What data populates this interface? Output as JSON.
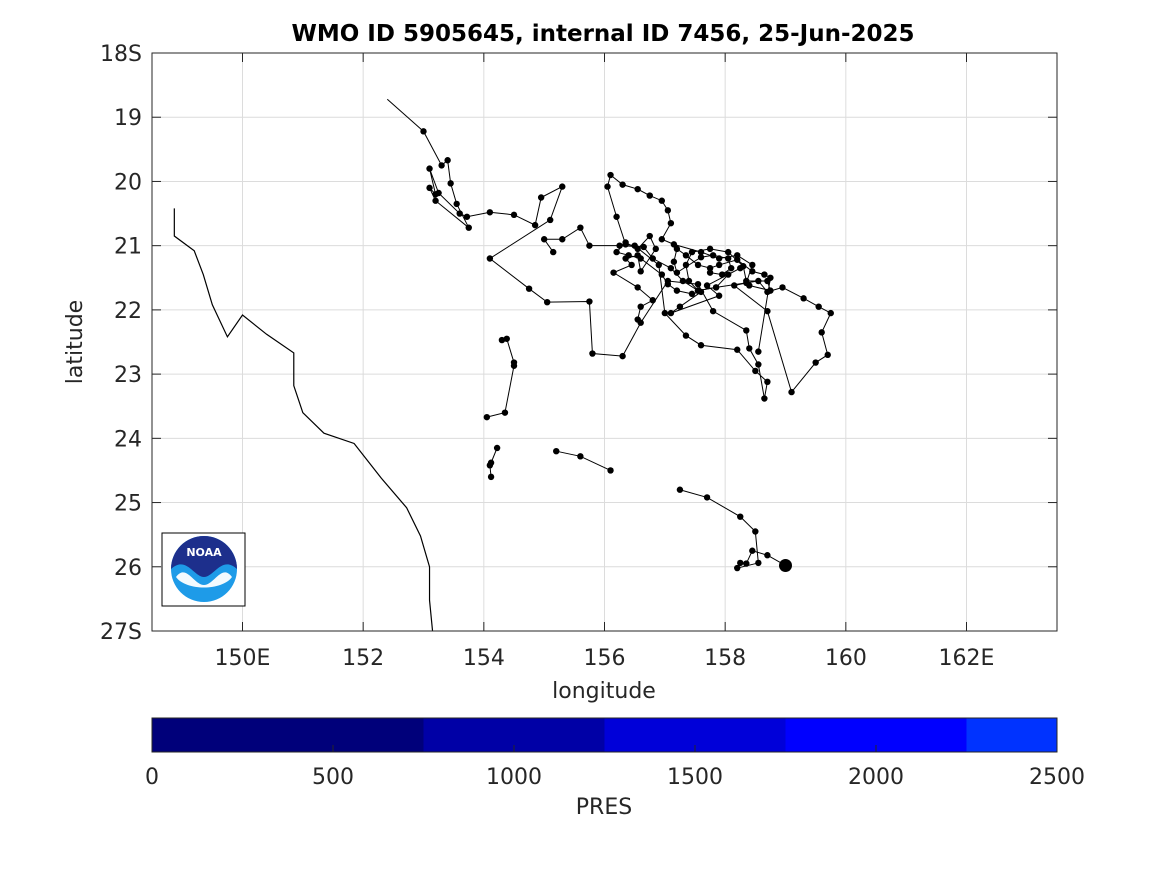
{
  "chart_data": [
    {
      "type": "scatter",
      "title": "WMO ID 5905645, internal ID 7456, 25-Jun-2025",
      "xlabel": "longitude",
      "ylabel": "latitude",
      "xlim": [
        148.5,
        163.5
      ],
      "ylim": [
        18,
        27
      ],
      "y_reversed": true,
      "grid": true,
      "x_ticks": [
        {
          "value": 150,
          "label": "150E"
        },
        {
          "value": 152,
          "label": "152"
        },
        {
          "value": 154,
          "label": "154"
        },
        {
          "value": 156,
          "label": "156"
        },
        {
          "value": 158,
          "label": "158"
        },
        {
          "value": 160,
          "label": "160"
        },
        {
          "value": 162,
          "label": "162E"
        }
      ],
      "y_ticks": [
        {
          "value": 18,
          "label": "18S"
        },
        {
          "value": 19,
          "label": "19"
        },
        {
          "value": 20,
          "label": "20"
        },
        {
          "value": 21,
          "label": "21"
        },
        {
          "value": 22,
          "label": "22"
        },
        {
          "value": 23,
          "label": "23"
        },
        {
          "value": 24,
          "label": "24"
        },
        {
          "value": 25,
          "label": "25"
        },
        {
          "value": 26,
          "label": "26"
        },
        {
          "value": 27,
          "label": "27S"
        }
      ],
      "coastline": [
        [
          148.87,
          20.42
        ],
        [
          148.87,
          20.85
        ],
        [
          149.2,
          21.08
        ],
        [
          149.35,
          21.45
        ],
        [
          149.5,
          21.92
        ],
        [
          149.75,
          22.42
        ],
        [
          150.0,
          22.08
        ],
        [
          150.4,
          22.38
        ],
        [
          150.85,
          22.67
        ],
        [
          150.85,
          23.18
        ],
        [
          151.0,
          23.6
        ],
        [
          151.35,
          23.92
        ],
        [
          151.85,
          24.08
        ],
        [
          152.3,
          24.62
        ],
        [
          152.72,
          25.08
        ],
        [
          152.95,
          25.52
        ],
        [
          153.1,
          26.0
        ],
        [
          153.1,
          26.52
        ],
        [
          153.15,
          27.0
        ]
      ],
      "track_segments": [
        [
          [
            152.4,
            18.72
          ],
          [
            153.0,
            19.22
          ],
          [
            153.3,
            19.75
          ],
          [
            153.4,
            19.67
          ],
          [
            153.45,
            20.03
          ],
          [
            153.55,
            20.35
          ],
          [
            153.75,
            20.72
          ],
          [
            153.2,
            20.3
          ],
          [
            153.1,
            20.1
          ],
          [
            153.2,
            20.2
          ],
          [
            153.1,
            19.8
          ],
          [
            153.25,
            20.18
          ],
          [
            153.6,
            20.5
          ],
          [
            153.72,
            20.55
          ],
          [
            154.1,
            20.48
          ],
          [
            154.5,
            20.52
          ],
          [
            154.85,
            20.68
          ],
          [
            154.95,
            20.25
          ],
          [
            155.3,
            20.08
          ],
          [
            155.1,
            20.6
          ],
          [
            154.1,
            21.2
          ],
          [
            154.75,
            21.67
          ],
          [
            155.05,
            21.88
          ],
          [
            155.75,
            21.87
          ],
          [
            155.8,
            22.68
          ],
          [
            156.3,
            22.72
          ],
          [
            156.6,
            22.2
          ],
          [
            157.05,
            21.55
          ],
          [
            157.55,
            21.6
          ],
          [
            157.8,
            22.02
          ],
          [
            158.35,
            22.32
          ],
          [
            158.4,
            22.6
          ],
          [
            158.55,
            22.85
          ],
          [
            158.65,
            23.38
          ],
          [
            158.7,
            23.12
          ],
          [
            158.5,
            22.95
          ],
          [
            158.2,
            22.62
          ],
          [
            157.6,
            22.55
          ],
          [
            157.35,
            22.4
          ],
          [
            157.0,
            22.05
          ],
          [
            156.9,
            21.3
          ],
          [
            156.5,
            21.0
          ],
          [
            156.35,
            20.98
          ],
          [
            156.2,
            20.55
          ],
          [
            156.05,
            20.08
          ],
          [
            156.1,
            19.9
          ],
          [
            156.3,
            20.05
          ],
          [
            156.55,
            20.12
          ],
          [
            156.75,
            20.22
          ],
          [
            156.95,
            20.3
          ],
          [
            157.05,
            20.45
          ],
          [
            157.1,
            20.65
          ],
          [
            156.95,
            20.9
          ],
          [
            157.15,
            20.98
          ],
          [
            157.6,
            21.1
          ],
          [
            157.9,
            21.2
          ],
          [
            158.2,
            21.15
          ],
          [
            158.45,
            21.3
          ],
          [
            158.35,
            21.58
          ],
          [
            158.15,
            21.62
          ],
          [
            158.7,
            22.02
          ],
          [
            159.1,
            23.28
          ],
          [
            159.5,
            22.82
          ],
          [
            159.7,
            22.7
          ],
          [
            159.6,
            22.35
          ],
          [
            159.75,
            22.05
          ],
          [
            159.55,
            21.95
          ],
          [
            159.3,
            21.82
          ],
          [
            158.95,
            21.65
          ],
          [
            158.7,
            21.72
          ],
          [
            158.55,
            21.55
          ],
          [
            157.85,
            21.65
          ],
          [
            157.55,
            21.7
          ],
          [
            157.3,
            21.55
          ],
          [
            157.1,
            21.35
          ],
          [
            156.8,
            21.2
          ],
          [
            156.65,
            21.02
          ],
          [
            156.25,
            21.0
          ],
          [
            155.75,
            21.0
          ],
          [
            155.6,
            20.72
          ],
          [
            155.3,
            20.9
          ],
          [
            155.0,
            20.9
          ],
          [
            155.15,
            21.1
          ]
        ],
        [
          [
            158.4,
            21.62
          ],
          [
            158.75,
            21.7
          ],
          [
            158.7,
            21.55
          ],
          [
            158.35,
            21.55
          ],
          [
            158.3,
            21.32
          ],
          [
            158.05,
            21.1
          ],
          [
            157.75,
            21.05
          ],
          [
            157.45,
            21.1
          ],
          [
            157.35,
            21.3
          ],
          [
            157.4,
            21.55
          ],
          [
            157.55,
            21.7
          ],
          [
            157.85,
            21.65
          ],
          [
            158.05,
            21.45
          ],
          [
            158.25,
            21.35
          ],
          [
            157.7,
            21.62
          ],
          [
            157.9,
            21.78
          ],
          [
            157.1,
            22.05
          ],
          [
            157.25,
            21.95
          ],
          [
            157.6,
            21.72
          ],
          [
            157.45,
            21.75
          ],
          [
            157.2,
            21.7
          ],
          [
            157.05,
            21.6
          ],
          [
            156.95,
            21.45
          ],
          [
            156.6,
            21.2
          ],
          [
            156.4,
            21.15
          ],
          [
            156.2,
            21.1
          ],
          [
            156.35,
            20.95
          ],
          [
            156.55,
            21.05
          ],
          [
            156.75,
            20.85
          ],
          [
            156.85,
            21.05
          ],
          [
            156.6,
            21.4
          ],
          [
            156.55,
            21.15
          ],
          [
            156.35,
            21.2
          ],
          [
            156.45,
            21.3
          ],
          [
            156.15,
            21.42
          ],
          [
            156.55,
            21.65
          ],
          [
            156.8,
            21.85
          ],
          [
            156.6,
            21.95
          ],
          [
            156.55,
            22.15
          ]
        ],
        [
          [
            158.55,
            22.65
          ],
          [
            158.75,
            21.5
          ],
          [
            158.65,
            21.45
          ],
          [
            158.45,
            21.4
          ],
          [
            158.2,
            21.22
          ],
          [
            157.9,
            21.3
          ],
          [
            157.75,
            21.35
          ],
          [
            157.55,
            21.3
          ],
          [
            157.35,
            21.15
          ],
          [
            157.2,
            21.05
          ],
          [
            157.15,
            21.25
          ],
          [
            157.2,
            21.42
          ],
          [
            157.6,
            21.18
          ],
          [
            157.8,
            21.15
          ],
          [
            158.05,
            21.2
          ],
          [
            158.1,
            21.35
          ],
          [
            157.95,
            21.45
          ],
          [
            157.75,
            21.42
          ]
        ],
        [
          [
            154.3,
            22.47
          ],
          [
            154.38,
            22.45
          ],
          [
            154.5,
            22.82
          ],
          [
            154.5,
            22.87
          ],
          [
            154.35,
            23.6
          ],
          [
            154.05,
            23.67
          ]
        ],
        [
          [
            154.22,
            24.15
          ],
          [
            154.12,
            24.38
          ],
          [
            154.1,
            24.42
          ],
          [
            154.12,
            24.6
          ]
        ],
        [
          [
            155.2,
            24.2
          ],
          [
            155.6,
            24.28
          ],
          [
            156.1,
            24.5
          ]
        ],
        [
          [
            157.25,
            24.8
          ],
          [
            157.7,
            24.92
          ],
          [
            158.25,
            25.22
          ],
          [
            158.5,
            25.45
          ],
          [
            158.55,
            25.94
          ],
          [
            158.2,
            26.02
          ],
          [
            158.25,
            25.94
          ],
          [
            158.35,
            25.95
          ],
          [
            158.45,
            25.75
          ],
          [
            158.7,
            25.82
          ],
          [
            159.0,
            25.98
          ]
        ]
      ],
      "final_position": [
        159.0,
        25.98
      ],
      "colorbar": {
        "label": "PRES",
        "ticks": [
          0,
          500,
          1000,
          1500,
          2000,
          2500
        ],
        "bands": [
          {
            "from": 0,
            "to": 750,
            "color": "#00007a"
          },
          {
            "from": 750,
            "to": 1250,
            "color": "#0000a6"
          },
          {
            "from": 1250,
            "to": 1750,
            "color": "#0000d9"
          },
          {
            "from": 1750,
            "to": 2250,
            "color": "#0000ff"
          },
          {
            "from": 2250,
            "to": 2500,
            "color": "#0033ff"
          }
        ]
      },
      "colors": {
        "track": "#000000",
        "grid": "#dcdcdc",
        "axes": "#262626"
      },
      "logo": {
        "text": "NOAA",
        "colors": {
          "dark": "#1d2f8c",
          "light": "#1e9be8"
        }
      }
    }
  ]
}
